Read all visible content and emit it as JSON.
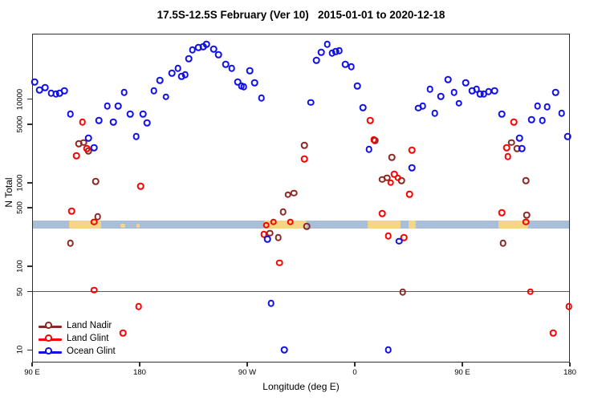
{
  "title": "17.5S-12.5S February (Ver 10)   2015-01-01 to 2020-12-18",
  "chart_data": {
    "type": "scatter",
    "title": "17.5S-12.5S February (Ver 10)   2015-01-01 to 2020-12-18",
    "xlabel": "Longitude (deg E)",
    "ylabel": "N Total",
    "y_scale": "log",
    "xlim_deg_e_wrapped": [
      90,
      540
    ],
    "ylim": [
      7,
      60000
    ],
    "grid": false,
    "legend_position": "bottom-left-inside",
    "x_ticks": [
      {
        "value": 90,
        "label": "90 E"
      },
      {
        "value": 180,
        "label": "180"
      },
      {
        "value": 270,
        "label": "90 W"
      },
      {
        "value": 360,
        "label": "0"
      },
      {
        "value": 450,
        "label": "90 E"
      },
      {
        "value": 540,
        "label": "180"
      }
    ],
    "y_ticks": [
      {
        "value": 10,
        "label": "10"
      },
      {
        "value": 50,
        "label": "50"
      },
      {
        "value": 100,
        "label": "100"
      },
      {
        "value": 500,
        "label": "500"
      },
      {
        "value": 1000,
        "label": "1000"
      },
      {
        "value": 5000,
        "label": "5000"
      },
      {
        "value": 10000,
        "label": "10000"
      }
    ],
    "reference_line": {
      "value": 50,
      "color": "#5a5a5a"
    },
    "map_band": {
      "ocean_color": "#a9bed9",
      "land_color": "#f6d488",
      "value_range": [
        283,
        352
      ],
      "land_segments": [
        {
          "from": 121,
          "to": 148,
          "thin": false
        },
        {
          "from": 164,
          "to": 168,
          "thin": true
        },
        {
          "from": 177,
          "to": 180,
          "thin": true
        },
        {
          "from": 284,
          "to": 320,
          "thin": false
        },
        {
          "from": 371,
          "to": 398,
          "thin": false
        },
        {
          "from": 405,
          "to": 411,
          "thin": false
        },
        {
          "from": 480,
          "to": 505,
          "thin": false
        }
      ]
    },
    "series": [
      {
        "name": "Land Nadir",
        "color": "#8b2823",
        "points": [
          [
            129,
            2940
          ],
          [
            133,
            3010
          ],
          [
            137,
            2410
          ],
          [
            143,
            1040
          ],
          [
            145,
            390
          ],
          [
            122,
            190
          ],
          [
            289,
            250
          ],
          [
            296,
            220
          ],
          [
            300,
            450
          ],
          [
            304,
            720
          ],
          [
            309,
            750
          ],
          [
            318,
            2810
          ],
          [
            320,
            300
          ],
          [
            377,
            3210
          ],
          [
            383,
            1090
          ],
          [
            387,
            1140
          ],
          [
            391,
            2020
          ],
          [
            399,
            1060
          ],
          [
            400,
            49
          ],
          [
            484,
            190
          ],
          [
            491,
            3010
          ],
          [
            496,
            2570
          ],
          [
            503,
            1060
          ],
          [
            504,
            410
          ]
        ]
      },
      {
        "name": "Land Glint",
        "color": "#fa0000",
        "points": [
          [
            123,
            460
          ],
          [
            127,
            2110
          ],
          [
            132,
            5330
          ],
          [
            136,
            2570
          ],
          [
            142,
            340
          ],
          [
            142,
            52
          ],
          [
            166,
            16
          ],
          [
            179,
            33
          ],
          [
            181,
            910
          ],
          [
            284,
            240
          ],
          [
            286,
            310
          ],
          [
            292,
            340
          ],
          [
            297,
            110
          ],
          [
            306,
            340
          ],
          [
            318,
            1930
          ],
          [
            373,
            5570
          ],
          [
            376,
            3280
          ],
          [
            383,
            430
          ],
          [
            388,
            230
          ],
          [
            390,
            1000
          ],
          [
            393,
            1270
          ],
          [
            396,
            1140
          ],
          [
            401,
            220
          ],
          [
            406,
            730
          ],
          [
            408,
            2460
          ],
          [
            483,
            440
          ],
          [
            487,
            2630
          ],
          [
            488,
            2060
          ],
          [
            493,
            5330
          ],
          [
            503,
            340
          ],
          [
            507,
            50
          ],
          [
            526,
            16
          ],
          [
            539,
            33
          ]
        ]
      },
      {
        "name": "Ocean Glint",
        "color": "#0f0fe6",
        "points": [
          [
            92,
            16000
          ],
          [
            96,
            12900
          ],
          [
            101,
            13800
          ],
          [
            106,
            11800
          ],
          [
            110,
            11500
          ],
          [
            113,
            11800
          ],
          [
            117,
            12600
          ],
          [
            122,
            6650
          ],
          [
            137,
            3430
          ],
          [
            142,
            2630
          ],
          [
            146,
            5570
          ],
          [
            153,
            8300
          ],
          [
            158,
            5330
          ],
          [
            162,
            8300
          ],
          [
            167,
            12000
          ],
          [
            172,
            6650
          ],
          [
            177,
            3580
          ],
          [
            183,
            6650
          ],
          [
            186,
            5210
          ],
          [
            192,
            12600
          ],
          [
            197,
            16800
          ],
          [
            202,
            10600
          ],
          [
            207,
            20500
          ],
          [
            212,
            23400
          ],
          [
            215,
            18800
          ],
          [
            218,
            19600
          ],
          [
            221,
            30500
          ],
          [
            224,
            38900
          ],
          [
            229,
            41600
          ],
          [
            233,
            42500
          ],
          [
            236,
            45400
          ],
          [
            242,
            39700
          ],
          [
            246,
            34000
          ],
          [
            252,
            26100
          ],
          [
            257,
            23400
          ],
          [
            262,
            16100
          ],
          [
            265,
            14400
          ],
          [
            267,
            14100
          ],
          [
            272,
            21900
          ],
          [
            276,
            15700
          ],
          [
            282,
            10300
          ],
          [
            287,
            212
          ],
          [
            290,
            36
          ],
          [
            301,
            10
          ],
          [
            323,
            9100
          ],
          [
            328,
            29200
          ],
          [
            332,
            36400
          ],
          [
            337,
            45400
          ],
          [
            341,
            35500
          ],
          [
            344,
            37200
          ],
          [
            347,
            38000
          ],
          [
            352,
            26100
          ],
          [
            357,
            24400
          ],
          [
            362,
            14400
          ],
          [
            367,
            7900
          ],
          [
            372,
            2520
          ],
          [
            388,
            10
          ],
          [
            397,
            200
          ],
          [
            408,
            1510
          ],
          [
            413,
            7800
          ],
          [
            417,
            8300
          ],
          [
            423,
            13200
          ],
          [
            427,
            6800
          ],
          [
            432,
            10800
          ],
          [
            438,
            17200
          ],
          [
            443,
            12000
          ],
          [
            447,
            8900
          ],
          [
            453,
            15700
          ],
          [
            458,
            12600
          ],
          [
            462,
            13200
          ],
          [
            465,
            11500
          ],
          [
            468,
            11500
          ],
          [
            472,
            12300
          ],
          [
            477,
            12600
          ],
          [
            483,
            6650
          ],
          [
            498,
            3430
          ],
          [
            500,
            2570
          ],
          [
            508,
            5700
          ],
          [
            513,
            8300
          ],
          [
            517,
            5570
          ],
          [
            521,
            8100
          ],
          [
            528,
            12000
          ],
          [
            533,
            6800
          ],
          [
            538,
            3580
          ]
        ]
      }
    ]
  },
  "legend": {
    "items": [
      {
        "label": "Land Nadir"
      },
      {
        "label": "Land Glint"
      },
      {
        "label": "Ocean Glint"
      }
    ]
  }
}
